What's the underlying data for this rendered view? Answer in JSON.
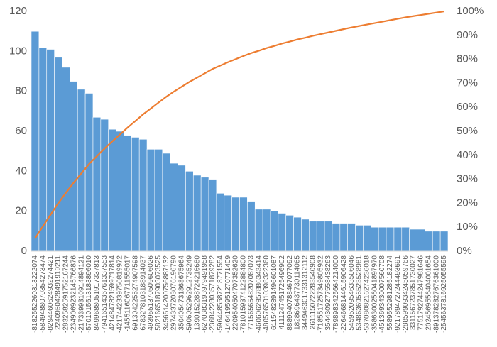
{
  "chart_data": {
    "type": "bar",
    "categories": [
      "-8182552260313222074",
      "-5849488070354273474",
      "-8294460624932274421",
      "-2240950428491919211",
      "-2832582591752167244",
      "-2349069232145766876",
      "-2173399310914894121",
      "-5701015613183896010",
      "8499688051917337813",
      "-7941651436761337553",
      "4214847821599717814",
      "-4217442339750819972",
      "-1455116067711555017",
      "6913042255274907598",
      "-6783278103188914037",
      "4939551370509606026",
      "5821665187903073525",
      "3456514200756887132",
      "2974337203076196790",
      "3504054731868675964",
      "-5906052962912735249",
      "1390152288724216680",
      "-6270383193979491958",
      "-2368422803571879282",
      "-5964485587218771554",
      "-1464195951270771409",
      "2209540504707352620",
      "-7810159374122884800",
      "-7715656548207087073",
      "-4606062957886343414",
      "-4805765010398322360",
      "6115482891496601087",
      "4111247451725496902",
      "8889940788467077092",
      "1828696437730114065",
      "3449463017331312112",
      "2611150722283540908",
      "-7185517257349805932",
      "3544309277558438263",
      "-7898983425664214000",
      "-2264668144615906428",
      "5459520954633506046",
      "5348636956523528981",
      "-5370808216274236018",
      "-3586300256041897970",
      "-4513693430007560708",
      "5589552981285182274",
      "-9217894727244493691",
      "-2885990934245059766",
      "3311567237851730027",
      "7751792744247981646",
      "2024569556404001654",
      "-8913782827676361000",
      "-2545637816925055595"
    ],
    "series": [
      {
        "color": "#5b9bd5",
        "values": [
          110,
          102,
          101,
          97,
          92,
          85,
          81,
          79,
          67,
          66,
          61,
          60,
          58,
          57,
          56,
          51,
          51,
          49,
          44,
          43,
          40,
          38,
          37,
          36,
          29,
          28,
          27,
          27,
          25,
          21,
          21,
          20,
          19,
          18,
          17,
          16,
          15,
          15,
          15,
          14,
          14,
          14,
          13,
          13,
          12,
          12,
          12,
          12,
          12,
          11,
          11,
          10,
          10,
          10
        ]
      },
      {
        "color": "#ed7d31",
        "axis": "y2",
        "values": [
          5.4,
          10.3,
          15.2,
          20.0,
          24.4,
          28.6,
          32.5,
          36.4,
          39.6,
          42.8,
          45.8,
          48.7,
          51.6,
          54.3,
          57.1,
          59.5,
          62.0,
          64.4,
          66.6,
          68.6,
          70.6,
          72.4,
          74.2,
          76.0,
          77.4,
          78.8,
          80.1,
          81.4,
          82.6,
          83.6,
          84.7,
          85.6,
          86.6,
          87.4,
          88.3,
          89.0,
          89.8,
          90.5,
          91.2,
          91.9,
          92.6,
          93.3,
          93.9,
          94.5,
          95.1,
          95.7,
          96.3,
          96.9,
          97.5,
          98.0,
          98.5,
          99.0,
          99.5,
          100
        ]
      }
    ],
    "ylim": [
      0,
      120
    ],
    "yticks": [
      0,
      20,
      40,
      60,
      80,
      100,
      120
    ],
    "y2lim": [
      0,
      100
    ],
    "y2ticks": [
      {
        "value": 0,
        "label": "0%"
      },
      {
        "value": 10,
        "label": "10%"
      },
      {
        "value": 20,
        "label": "20%"
      },
      {
        "value": 30,
        "label": "30%"
      },
      {
        "value": 40,
        "label": "40%"
      },
      {
        "value": 50,
        "label": "50%"
      },
      {
        "value": 60,
        "label": "60%"
      },
      {
        "value": 70,
        "label": "70%"
      },
      {
        "value": 80,
        "label": "80%"
      },
      {
        "value": 90,
        "label": "90%"
      },
      {
        "value": 100,
        "label": "100%"
      }
    ],
    "grid": false
  }
}
